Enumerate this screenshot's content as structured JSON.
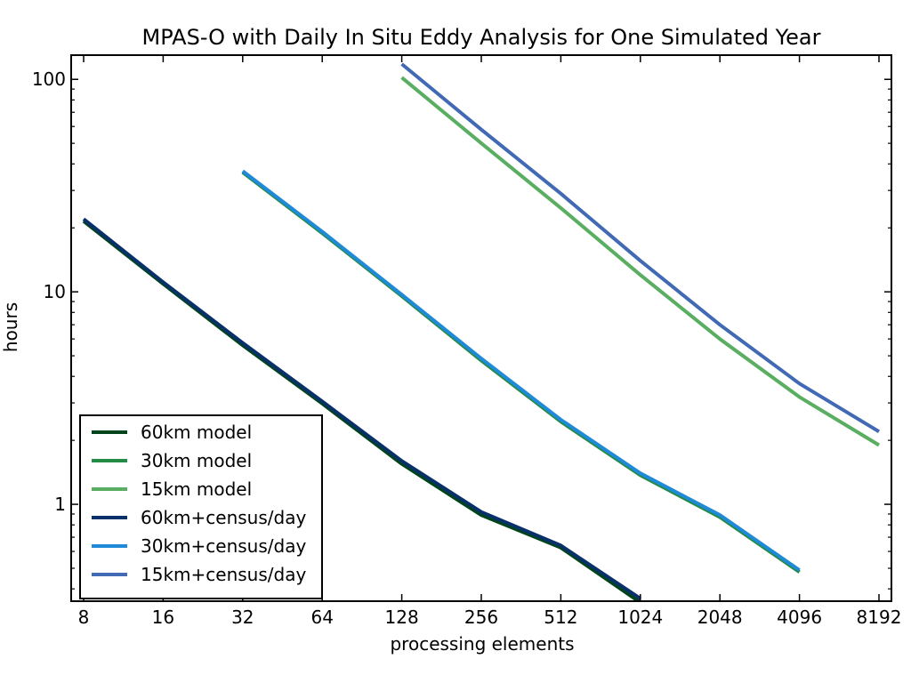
{
  "chart_data": {
    "type": "line",
    "title": "MPAS-O with Daily In Situ Eddy Analysis for One Simulated Year",
    "xlabel": "processing elements",
    "ylabel": "hours",
    "x_scale": "log2",
    "y_scale": "log10",
    "xlim": [
      8,
      8192
    ],
    "ylim": [
      0.35,
      130
    ],
    "x_ticks": [
      8,
      16,
      32,
      64,
      128,
      256,
      512,
      1024,
      2048,
      4096,
      8192
    ],
    "x_tick_labels": [
      "8",
      "16",
      "32",
      "64",
      "128",
      "256",
      "512",
      "1024",
      "2048",
      "4096",
      "8192"
    ],
    "y_ticks": [
      1,
      10,
      100
    ],
    "y_tick_labels": [
      "1",
      "10",
      "100"
    ],
    "grid": false,
    "legend_position": "lower-left",
    "series": [
      {
        "name": "60km model",
        "color": "#00441b",
        "x": [
          8,
          16,
          32,
          64,
          128,
          256,
          512,
          1024
        ],
        "y": [
          21.5,
          10.9,
          5.6,
          2.98,
          1.55,
          0.89,
          0.625,
          0.345
        ]
      },
      {
        "name": "30km model",
        "color": "#238b45",
        "x": [
          32,
          64,
          128,
          256,
          512,
          1024,
          2048,
          4096
        ],
        "y": [
          36.5,
          18.9,
          9.55,
          4.75,
          2.45,
          1.37,
          0.87,
          0.48
        ]
      },
      {
        "name": "15km model",
        "color": "#5aae61",
        "x": [
          128,
          256,
          512,
          1024,
          2048,
          4096,
          8192
        ],
        "y": [
          102,
          50,
          24.8,
          12.0,
          6.0,
          3.2,
          1.9
        ]
      },
      {
        "name": "60km+census/day",
        "color": "#08306b",
        "x": [
          8,
          16,
          32,
          64,
          128,
          256,
          512,
          1024
        ],
        "y": [
          22.0,
          11.1,
          5.75,
          3.05,
          1.6,
          0.92,
          0.64,
          0.36
        ]
      },
      {
        "name": "30km+census/day",
        "color": "#1f8ad8",
        "x": [
          32,
          64,
          128,
          256,
          512,
          1024,
          2048,
          4096
        ],
        "y": [
          37,
          19.2,
          9.7,
          4.85,
          2.5,
          1.4,
          0.89,
          0.49
        ]
      },
      {
        "name": "15km+census/day",
        "color": "#4169b4",
        "x": [
          128,
          256,
          512,
          1024,
          2048,
          4096,
          8192
        ],
        "y": [
          118,
          58,
          29,
          14.0,
          7.0,
          3.7,
          2.2
        ]
      }
    ]
  }
}
